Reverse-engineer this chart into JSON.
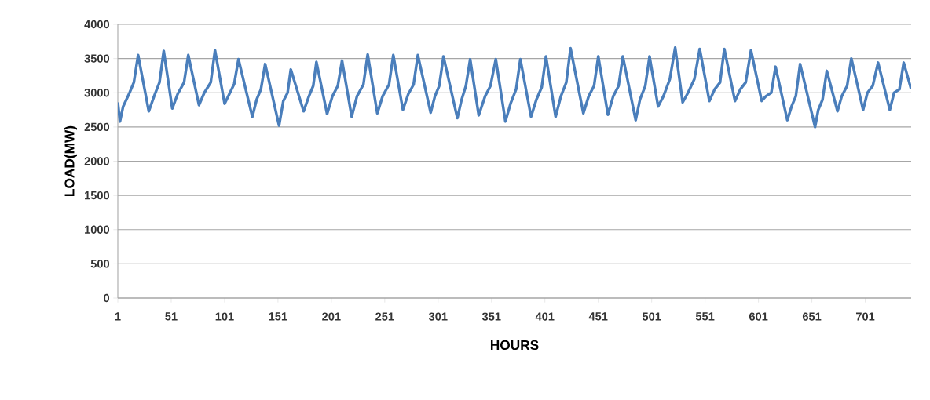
{
  "chart_data": {
    "type": "line",
    "xlabel": "HOURS",
    "ylabel": "LOAD(MW)",
    "color": "#4a7ebb",
    "grid": "y",
    "xlim": [
      1,
      744
    ],
    "ylim": [
      0,
      4000
    ],
    "xticks": [
      1,
      51,
      101,
      151,
      201,
      251,
      301,
      351,
      401,
      451,
      501,
      551,
      601,
      651,
      701
    ],
    "yticks": [
      0,
      500,
      1000,
      1500,
      2000,
      2500,
      3000,
      3500,
      4000
    ],
    "x": [
      1,
      3,
      6,
      12,
      16,
      20,
      30,
      35,
      40,
      44,
      52,
      57,
      63,
      67,
      77,
      82,
      88,
      92,
      101,
      106,
      110,
      114,
      127,
      131,
      135,
      139,
      152,
      156,
      160,
      163,
      175,
      180,
      184,
      187,
      197,
      202,
      207,
      211,
      220,
      225,
      231,
      235,
      244,
      249,
      255,
      259,
      268,
      273,
      278,
      282,
      294,
      298,
      302,
      306,
      319,
      323,
      327,
      331,
      339,
      345,
      350,
      355,
      364,
      369,
      374,
      378,
      388,
      393,
      398,
      402,
      411,
      416,
      421,
      425,
      437,
      442,
      447,
      451,
      460,
      465,
      470,
      474,
      486,
      490,
      495,
      499,
      507,
      512,
      518,
      523,
      530,
      535,
      541,
      546,
      555,
      560,
      565,
      569,
      579,
      584,
      589,
      594,
      604,
      608,
      613,
      617,
      628,
      632,
      636,
      640,
      654,
      657,
      661,
      665,
      675,
      679,
      684,
      688,
      699,
      703,
      708,
      713,
      724,
      728,
      733,
      737,
      744
    ],
    "values": [
      2860,
      2580,
      2800,
      3000,
      3150,
      3550,
      2730,
      2950,
      3150,
      3610,
      2770,
      2980,
      3150,
      3550,
      2820,
      3000,
      3150,
      3620,
      2840,
      3000,
      3130,
      3490,
      2650,
      2900,
      3050,
      3420,
      2520,
      2880,
      3000,
      3340,
      2730,
      2950,
      3100,
      3450,
      2690,
      2950,
      3100,
      3470,
      2650,
      2950,
      3120,
      3560,
      2700,
      2950,
      3120,
      3550,
      2750,
      2980,
      3120,
      3550,
      2710,
      2950,
      3100,
      3530,
      2630,
      2900,
      3100,
      3490,
      2670,
      2950,
      3100,
      3490,
      2580,
      2850,
      3050,
      3490,
      2650,
      2900,
      3080,
      3530,
      2650,
      2950,
      3150,
      3650,
      2700,
      2950,
      3100,
      3530,
      2680,
      2950,
      3100,
      3530,
      2600,
      2900,
      3100,
      3530,
      2800,
      2950,
      3200,
      3660,
      2860,
      3000,
      3200,
      3640,
      2880,
      3050,
      3150,
      3640,
      2880,
      3050,
      3150,
      3620,
      2880,
      2950,
      3000,
      3380,
      2600,
      2800,
      2950,
      3420,
      2500,
      2750,
      2900,
      3320,
      2730,
      2950,
      3100,
      3500,
      2750,
      3000,
      3100,
      3440,
      2750,
      3000,
      3050,
      3440,
      3050
    ]
  }
}
